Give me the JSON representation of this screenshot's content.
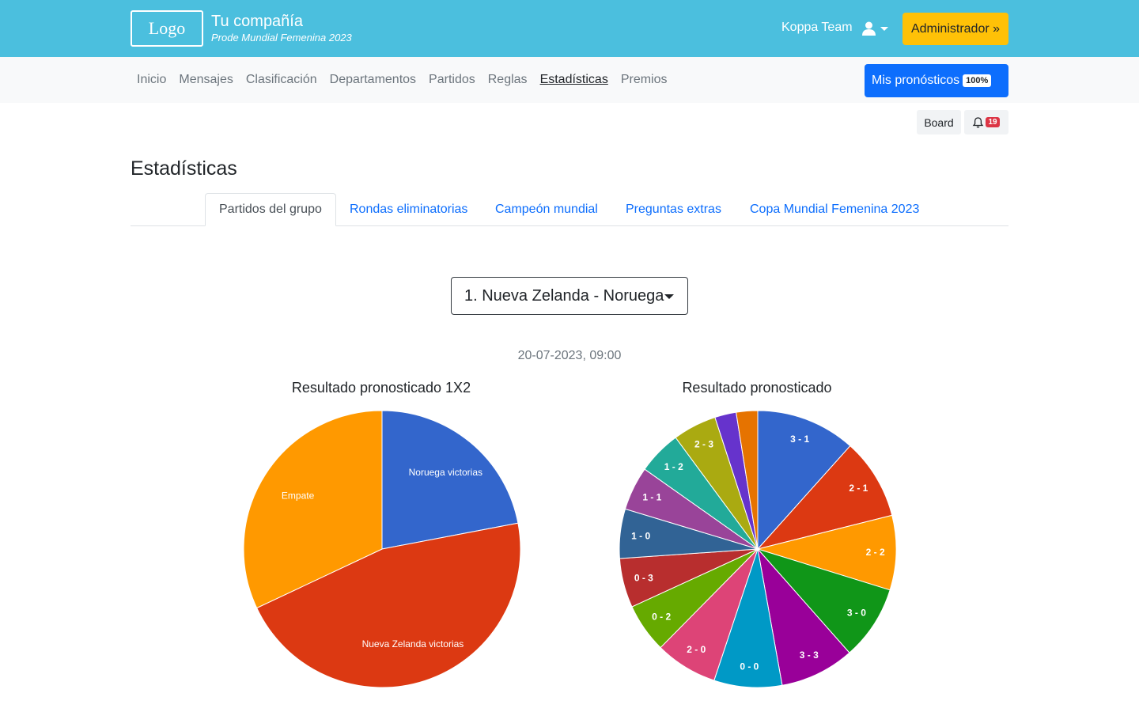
{
  "header": {
    "logo_text": "Logo",
    "company_name": "Tu compañía",
    "company_subtitle": "Prode Mundial Femenina 2023",
    "team_name": "Koppa Team",
    "user_icon": "user-icon",
    "admin_button": "Administrador »"
  },
  "nav": {
    "items": [
      "Inicio",
      "Mensajes",
      "Clasificación",
      "Departamentos",
      "Partidos",
      "Reglas",
      "Estadísticas",
      "Premios"
    ],
    "active": "Estadísticas",
    "predictions_button": "Mis pronósticos",
    "predictions_badge": "100%"
  },
  "toolbar": {
    "board_label": "Board",
    "bell_icon": "bell-icon",
    "notifications_count": "19"
  },
  "page": {
    "title": "Estadísticas",
    "tabs": [
      "Partidos del grupo",
      "Rondas eliminatorias",
      "Campeón mundial",
      "Preguntas extras",
      "Copa Mundial Femenina 2023"
    ],
    "active_tab": "Partidos del grupo",
    "match_select": "1. Nueva Zelanda - Noruega",
    "match_date": "20-07-2023, 09:00"
  },
  "chart_data": [
    {
      "type": "pie",
      "title": "Resultado pronosticado 1X2",
      "slices": [
        {
          "label": "Noruega victorias",
          "value": 22,
          "color": "#3366cc"
        },
        {
          "label": "Nueva Zelanda victorias",
          "value": 46,
          "color": "#dc3912"
        },
        {
          "label": "Empate",
          "value": 32,
          "color": "#ff9900"
        }
      ]
    },
    {
      "type": "pie",
      "title": "Resultado pronosticado",
      "slices": [
        {
          "label": "3 - 1",
          "value": 10.7,
          "color": "#3366cc"
        },
        {
          "label": "2 - 1",
          "value": 8.7,
          "color": "#dc3912"
        },
        {
          "label": "2 - 2",
          "value": 8.0,
          "color": "#ff9900"
        },
        {
          "label": "3 - 0",
          "value": 8.0,
          "color": "#109618"
        },
        {
          "label": "3 - 3",
          "value": 8.0,
          "color": "#990099"
        },
        {
          "label": "0 - 0",
          "value": 7.3,
          "color": "#0099c6"
        },
        {
          "label": "2 - 0",
          "value": 6.7,
          "color": "#dd4477"
        },
        {
          "label": "0 - 2",
          "value": 5.3,
          "color": "#66aa00"
        },
        {
          "label": "0 - 3",
          "value": 5.3,
          "color": "#b82e2e"
        },
        {
          "label": "1 - 0",
          "value": 5.3,
          "color": "#316395"
        },
        {
          "label": "1 - 1",
          "value": 4.7,
          "color": "#994499"
        },
        {
          "label": "1 - 2",
          "value": 4.7,
          "color": "#22aa99"
        },
        {
          "label": "2 - 3",
          "value": 4.7,
          "color": "#aaaa11"
        },
        {
          "label": "",
          "value": 2.3,
          "color": "#6633cc"
        },
        {
          "label": "",
          "value": 2.3,
          "color": "#e67300"
        }
      ]
    }
  ]
}
